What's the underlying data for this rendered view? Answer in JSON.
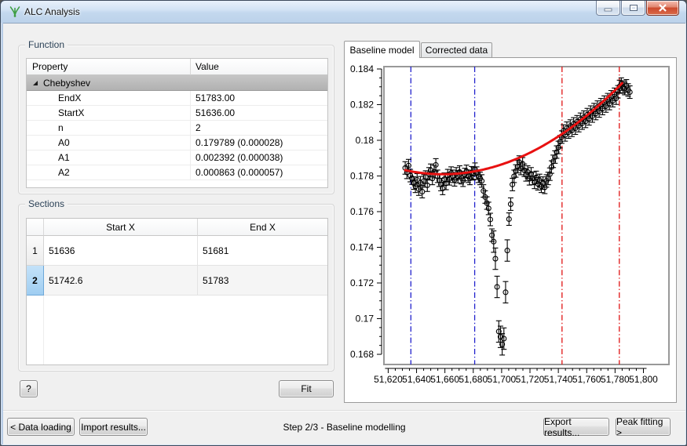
{
  "window": {
    "title": "ALC Analysis"
  },
  "titlebar": {
    "minimize": "minimize",
    "maximize": "maximize",
    "close": "close"
  },
  "function_box": {
    "label": "Function",
    "table": {
      "headers": [
        "Property",
        "Value"
      ],
      "group_row": {
        "name": "Chebyshev",
        "expanded": true
      },
      "rows": [
        [
          "EndX",
          "51783.00"
        ],
        [
          "StartX",
          "51636.00"
        ],
        [
          "n",
          "2"
        ],
        [
          "A0",
          "0.179789 (0.000028)"
        ],
        [
          "A1",
          "0.002392 (0.000038)"
        ],
        [
          "A2",
          "0.000863 (0.000057)"
        ]
      ]
    }
  },
  "sections_box": {
    "label": "Sections",
    "table": {
      "headers": [
        "",
        "Start X",
        "End X"
      ],
      "rows": [
        {
          "num": "1",
          "start": "51636",
          "end": "51681",
          "selected": false
        },
        {
          "num": "2",
          "start": "51742.6",
          "end": "51783",
          "selected": true
        }
      ]
    }
  },
  "tabs": [
    {
      "label": "Baseline model",
      "active": true
    },
    {
      "label": "Corrected data",
      "active": false
    }
  ],
  "buttons": {
    "help": "?",
    "fit": "Fit",
    "data_loading": "< Data loading",
    "import_results": "Import results...",
    "export_results": "Export results...",
    "peak_fitting": "Peak fitting >"
  },
  "status": {
    "step_text": "Step 2/3 - Baseline modelling"
  },
  "chart_data": {
    "type": "scatter",
    "title": "",
    "xlabel": "",
    "ylabel": "",
    "xlim": [
      51617,
      51818
    ],
    "ylim": [
      0.16743,
      0.18413
    ],
    "grid": false,
    "legend": false,
    "x_ticks": {
      "start": 51620,
      "end": 51800,
      "major_step": 20,
      "minor_step": 5,
      "labels": [
        "51,620",
        "51,640",
        "51,660",
        "51,680",
        "51,700",
        "51,720",
        "51,740",
        "51,760",
        "51,780",
        "51,800"
      ]
    },
    "y_ticks": {
      "start": 0.168,
      "end": 0.184,
      "major_step": 0.002,
      "minor_step": 0.0005,
      "labels": [
        "0.168",
        "0.17",
        "0.172",
        "0.174",
        "0.176",
        "0.178",
        "0.18",
        "0.182",
        "0.184"
      ]
    },
    "section_markers": [
      {
        "x": 51636,
        "color": "#2121cd",
        "style": "dash-dot",
        "section": 1
      },
      {
        "x": 51681,
        "color": "#2121cd",
        "style": "dash-dot",
        "section": 1
      },
      {
        "x": 51742.6,
        "color": "#e01313",
        "style": "dash-dot",
        "section": 2
      },
      {
        "x": 51783,
        "color": "#e01313",
        "style": "dash-dot",
        "section": 2
      }
    ],
    "fit_curve": {
      "name": "Chebyshev baseline fit",
      "type": "chebyshev",
      "coeffs": [
        0.179789,
        0.002392,
        0.000863
      ],
      "domain": [
        51636,
        51783
      ],
      "draw_range": [
        51632,
        51785
      ],
      "color": "#e81111",
      "width": 3
    },
    "series": [
      {
        "name": "ALC data",
        "marker": "open-circle",
        "color": "#000000",
        "default_error": 0.00035,
        "points": [
          [
            51632.0,
            0.17845
          ],
          [
            51633.2,
            0.1782
          ],
          [
            51634.4,
            0.17858
          ],
          [
            51635.6,
            0.17802
          ],
          [
            51636.8,
            0.17788
          ],
          [
            51638.0,
            0.1776
          ],
          [
            51639.2,
            0.17742
          ],
          [
            51640.4,
            0.17778
          ],
          [
            51641.6,
            0.17726
          ],
          [
            51642.8,
            0.17762
          ],
          [
            51644.0,
            0.17712
          ],
          [
            51645.2,
            0.17772
          ],
          [
            51646.4,
            0.17794
          ],
          [
            51647.6,
            0.17748
          ],
          [
            51648.8,
            0.17812
          ],
          [
            51650.0,
            0.17832
          ],
          [
            51651.2,
            0.17786
          ],
          [
            51652.4,
            0.17824
          ],
          [
            51653.6,
            0.17862
          ],
          [
            51654.8,
            0.17798
          ],
          [
            51656.0,
            0.17776
          ],
          [
            51657.2,
            0.17752
          ],
          [
            51658.4,
            0.1773
          ],
          [
            51659.6,
            0.17782
          ],
          [
            51660.8,
            0.17758
          ],
          [
            51662.0,
            0.17802
          ],
          [
            51663.2,
            0.17784
          ],
          [
            51664.4,
            0.17816
          ],
          [
            51665.6,
            0.17798
          ],
          [
            51666.8,
            0.17778
          ],
          [
            51668.0,
            0.17812
          ],
          [
            51669.2,
            0.17796
          ],
          [
            51670.4,
            0.17822
          ],
          [
            51671.6,
            0.1779
          ],
          [
            51672.8,
            0.17776
          ],
          [
            51674.0,
            0.17808
          ],
          [
            51675.2,
            0.17826
          ],
          [
            51676.4,
            0.17798
          ],
          [
            51677.6,
            0.17786
          ],
          [
            51678.8,
            0.17818
          ],
          [
            51680.0,
            0.17812
          ],
          [
            51681.2,
            0.17838
          ],
          [
            51682.4,
            0.17816
          ],
          [
            51683.6,
            0.17798
          ],
          [
            51684.8,
            0.17786
          ],
          [
            51686.0,
            0.17772
          ],
          [
            51687.2,
            0.17716
          ],
          [
            51688.4,
            0.17682
          ],
          [
            51689.6,
            0.17648
          ],
          [
            51690.8,
            0.17618
          ],
          [
            51692.0,
            0.17556
          ],
          [
            51693.2,
            0.17468
          ],
          [
            51694.4,
            0.17432,
            0.0006
          ],
          [
            51695.6,
            0.17336,
            0.0006
          ],
          [
            51696.8,
            0.17178,
            0.0006
          ],
          [
            51698.0,
            0.16928,
            0.0006
          ],
          [
            51699.2,
            0.16898,
            0.0006
          ],
          [
            51700.4,
            0.16856,
            0.0006
          ],
          [
            51701.6,
            0.16888,
            0.0006
          ],
          [
            51702.8,
            0.17148,
            0.0006
          ],
          [
            51704.0,
            0.17382,
            0.0006
          ],
          [
            51705.2,
            0.17558
          ],
          [
            51706.4,
            0.17642
          ],
          [
            51707.6,
            0.17752
          ],
          [
            51708.8,
            0.17798
          ],
          [
            51710.0,
            0.17828
          ],
          [
            51711.2,
            0.17852
          ],
          [
            51712.4,
            0.17878
          ],
          [
            51713.6,
            0.17842
          ],
          [
            51714.8,
            0.17868
          ],
          [
            51716.0,
            0.17832
          ],
          [
            51717.2,
            0.17806
          ],
          [
            51718.4,
            0.17822
          ],
          [
            51719.6,
            0.17784
          ],
          [
            51720.8,
            0.17812
          ],
          [
            51722.0,
            0.17786
          ],
          [
            51723.2,
            0.17764
          ],
          [
            51724.4,
            0.17792
          ],
          [
            51725.6,
            0.17756
          ],
          [
            51726.8,
            0.17775
          ],
          [
            51728.0,
            0.17742
          ],
          [
            51729.2,
            0.1776
          ],
          [
            51730.4,
            0.17736
          ],
          [
            51731.6,
            0.17772
          ],
          [
            51732.8,
            0.17786
          ],
          [
            51734.0,
            0.1781
          ],
          [
            51735.2,
            0.1785
          ],
          [
            51736.4,
            0.17882
          ],
          [
            51737.6,
            0.17906
          ],
          [
            51738.8,
            0.17934
          ],
          [
            51740.0,
            0.1796
          ],
          [
            51741.2,
            0.17992
          ],
          [
            51742.4,
            0.18018
          ],
          [
            51743.6,
            0.18052
          ],
          [
            51744.8,
            0.1803
          ],
          [
            51746.0,
            0.18068
          ],
          [
            51747.2,
            0.18046
          ],
          [
            51748.4,
            0.1808
          ],
          [
            51749.6,
            0.18056
          ],
          [
            51750.8,
            0.18092
          ],
          [
            51752.0,
            0.18068
          ],
          [
            51753.2,
            0.18104
          ],
          [
            51754.4,
            0.18082
          ],
          [
            51755.6,
            0.18118
          ],
          [
            51756.8,
            0.18096
          ],
          [
            51758.0,
            0.1813
          ],
          [
            51759.2,
            0.18106
          ],
          [
            51760.4,
            0.18144
          ],
          [
            51761.6,
            0.1812
          ],
          [
            51762.8,
            0.18158
          ],
          [
            51764.0,
            0.18136
          ],
          [
            51765.2,
            0.18172
          ],
          [
            51766.4,
            0.1815
          ],
          [
            51767.6,
            0.18186
          ],
          [
            51768.8,
            0.18164
          ],
          [
            51770.0,
            0.182
          ],
          [
            51771.2,
            0.18178
          ],
          [
            51772.4,
            0.18214
          ],
          [
            51773.6,
            0.18192
          ],
          [
            51774.8,
            0.18228
          ],
          [
            51776.0,
            0.18206
          ],
          [
            51777.2,
            0.18244
          ],
          [
            51778.4,
            0.18222
          ],
          [
            51779.6,
            0.18258
          ],
          [
            51780.8,
            0.18236
          ],
          [
            51782.0,
            0.18272
          ],
          [
            51783.2,
            0.18302
          ],
          [
            51784.4,
            0.18315
          ],
          [
            51785.6,
            0.18298
          ],
          [
            51786.8,
            0.1829
          ],
          [
            51788.0,
            0.18305
          ],
          [
            51789.2,
            0.18282
          ],
          [
            51790.4,
            0.1827
          ]
        ]
      }
    ]
  }
}
